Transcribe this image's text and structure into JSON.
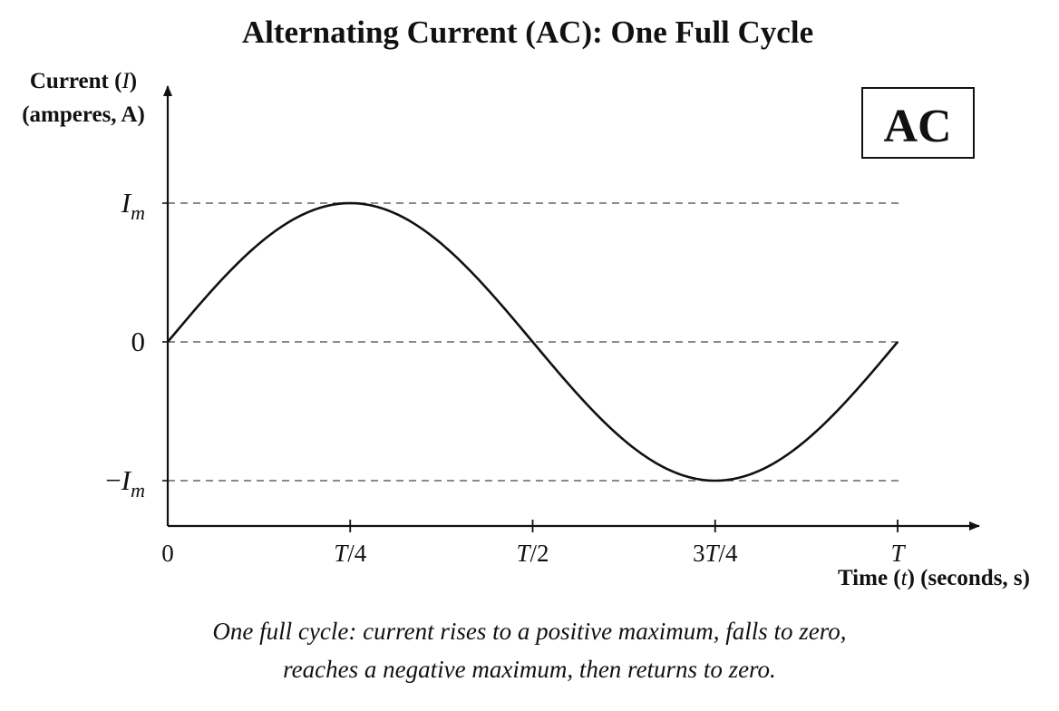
{
  "chart_data": {
    "type": "line",
    "title": "Alternating Current (AC): One Full Cycle",
    "ylabel": {
      "line1_prefix": "Current (",
      "line1_symbol": "I",
      "line1_suffix": ")",
      "line2": "(amperes, A)"
    },
    "xlabel": {
      "prefix": "Time (",
      "symbol": "t",
      "suffix": ") (seconds, s)"
    },
    "badge": "AC",
    "x_ticks": [
      {
        "label": "0",
        "value": 0
      },
      {
        "label": "T/4",
        "value": 0.25
      },
      {
        "label": "T/2",
        "value": 0.5
      },
      {
        "label": "3T/4",
        "value": 0.75
      },
      {
        "label": "T",
        "value": 1.0
      }
    ],
    "y_ticks": [
      {
        "main": "I",
        "sub": "m",
        "prefix": "",
        "value": 1
      },
      {
        "main": "0",
        "sub": "",
        "prefix": "",
        "value": 0
      },
      {
        "main": "I",
        "sub": "m",
        "prefix": "−",
        "value": -1
      }
    ],
    "xlim": [
      0,
      1
    ],
    "ylim": [
      -1,
      1
    ],
    "series": [
      {
        "x": [
          0,
          0.25,
          0.5,
          0.75,
          1.0
        ],
        "values": [
          0,
          1,
          0,
          -1,
          0
        ],
        "function": "sine"
      }
    ],
    "reference_lines_y": [
      1,
      0,
      -1
    ],
    "caption_lines": [
      "One full cycle: current rises to a positive maximum, falls to zero,",
      "reaches a negative maximum, then returns to zero."
    ],
    "grid": false
  }
}
